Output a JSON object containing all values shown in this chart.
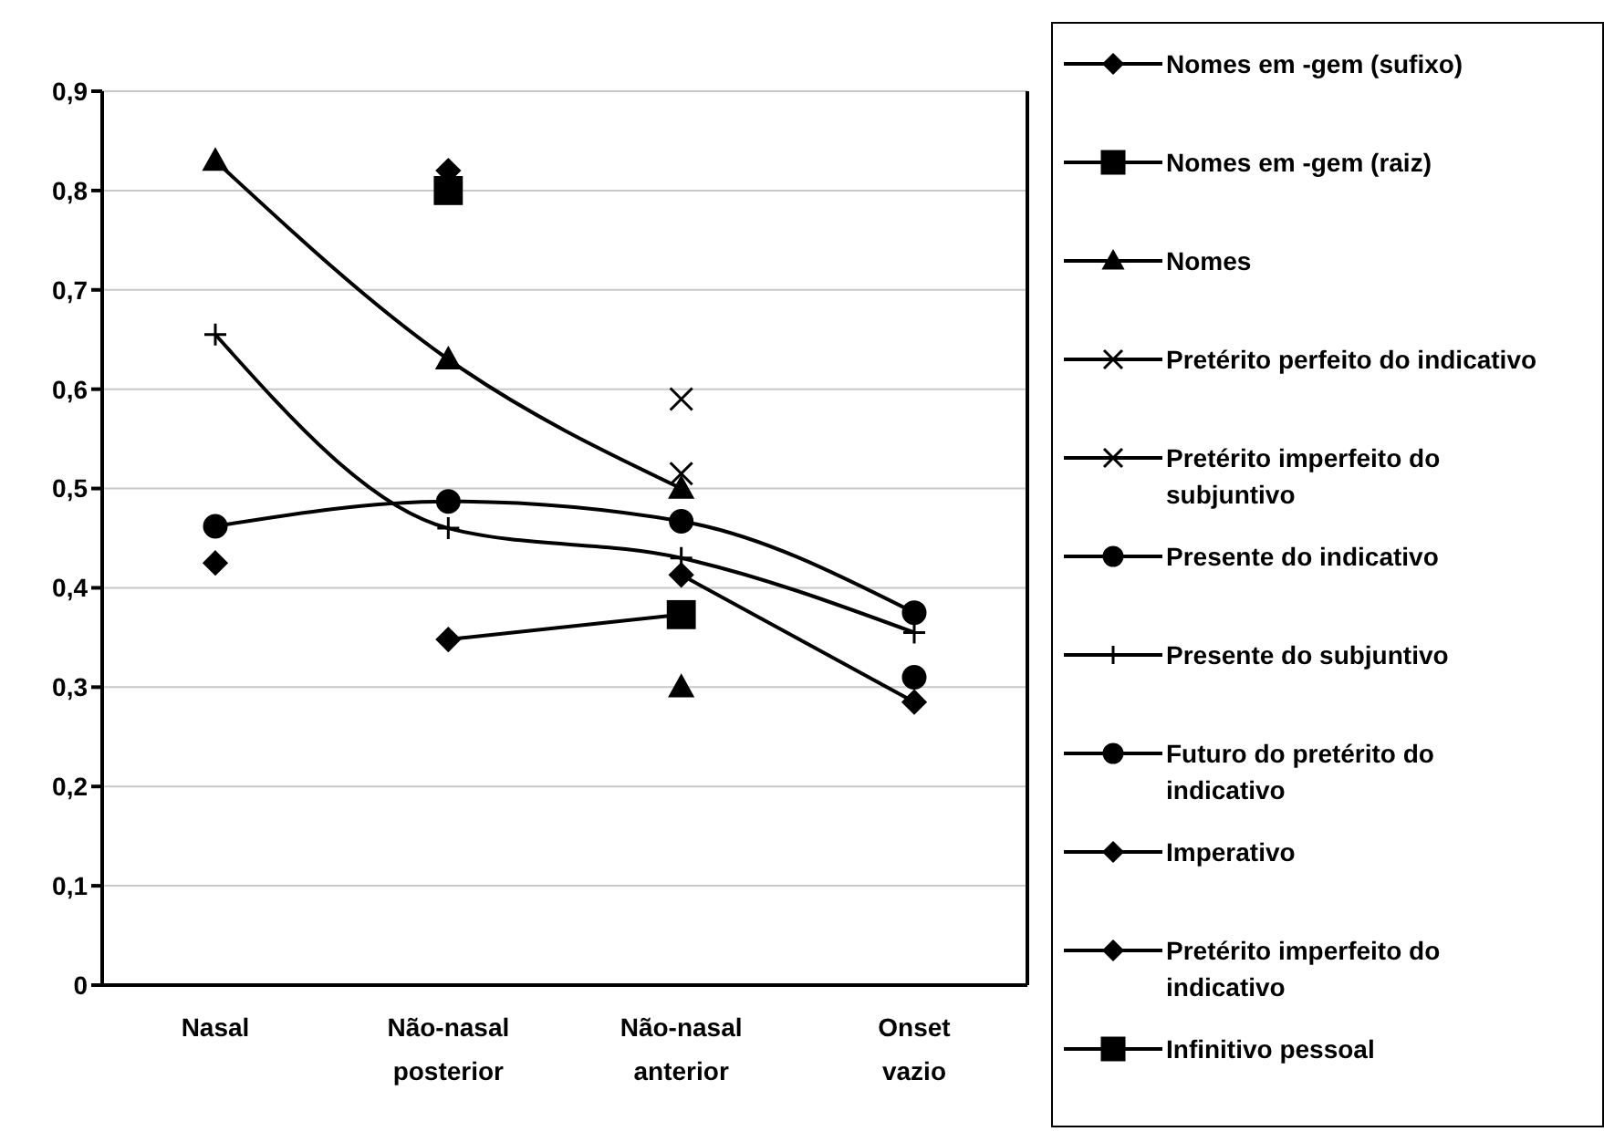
{
  "chart_data": {
    "type": "line",
    "categories": [
      "Nasal",
      "Não-nasal posterior",
      "Não-nasal anterior",
      "Onset vazio"
    ],
    "ylim": [
      0,
      0.9
    ],
    "yticks": [
      {
        "value": 0,
        "label": "0"
      },
      {
        "value": 0.1,
        "label": "0,1"
      },
      {
        "value": 0.2,
        "label": "0,2"
      },
      {
        "value": 0.3,
        "label": "0,3"
      },
      {
        "value": 0.4,
        "label": "0,4"
      },
      {
        "value": 0.5,
        "label": "0,5"
      },
      {
        "value": 0.6,
        "label": "0,6"
      },
      {
        "value": 0.7,
        "label": "0,7"
      },
      {
        "value": 0.8,
        "label": "0,8"
      },
      {
        "value": 0.9,
        "label": "0,9"
      }
    ],
    "grid": "y",
    "legend": "right",
    "series": [
      {
        "name": "Nomes em -gem (sufixo)",
        "type": "scatter",
        "color": "#000000",
        "marker": "diamond",
        "values": [
          null,
          0.82,
          null,
          null
        ]
      },
      {
        "name": "Nomes em -gem (raiz)",
        "type": "scatter",
        "color": "#000000",
        "marker": "square",
        "values": [
          null,
          0.8,
          null,
          null
        ]
      },
      {
        "name": "Nomes",
        "color": "#000000",
        "marker": "triangle",
        "values": [
          0.83,
          0.63,
          0.5,
          null
        ]
      },
      {
        "name": "Pretérito perfeito do indicativo",
        "type": "scatter",
        "color": "#000000",
        "marker": "cross",
        "values": [
          null,
          null,
          0.59,
          null
        ]
      },
      {
        "name": "Pretérito imperfeito do subjuntivo",
        "type": "scatter",
        "color": "#000000",
        "marker": "cross",
        "values": [
          null,
          null,
          0.515,
          null
        ]
      },
      {
        "name": "Presente do indicativo",
        "color": "#000000",
        "marker": "circle",
        "values": [
          0.462,
          0.487,
          0.467,
          0.375
        ]
      },
      {
        "name": "Presente do subjuntivo",
        "color": "#000000",
        "marker": "plus",
        "values": [
          0.655,
          0.46,
          0.43,
          0.355
        ]
      },
      {
        "name": "Futuro do pretérito do indicativo",
        "type": "scatter",
        "color": "#000000",
        "marker": "circle",
        "values": [
          null,
          null,
          null,
          0.31
        ]
      },
      {
        "name": "Imperativo",
        "color": "#000000",
        "marker": "diamond",
        "values": [
          null,
          0.348,
          0.373,
          null
        ]
      },
      {
        "name": "Pretérito imperfeito do indicativo",
        "color": "#000000",
        "marker": "diamond",
        "values": [
          0.425,
          null,
          0.413,
          0.285
        ]
      },
      {
        "name": "Infinitivo pessoal",
        "type": "scatter",
        "color": "#000000",
        "marker": "square",
        "values": [
          null,
          null,
          0.373,
          null
        ]
      },
      {
        "type": "scatter",
        "color": "#000000",
        "marker": "triangle",
        "values": [
          null,
          null,
          0.3,
          null
        ]
      }
    ]
  }
}
